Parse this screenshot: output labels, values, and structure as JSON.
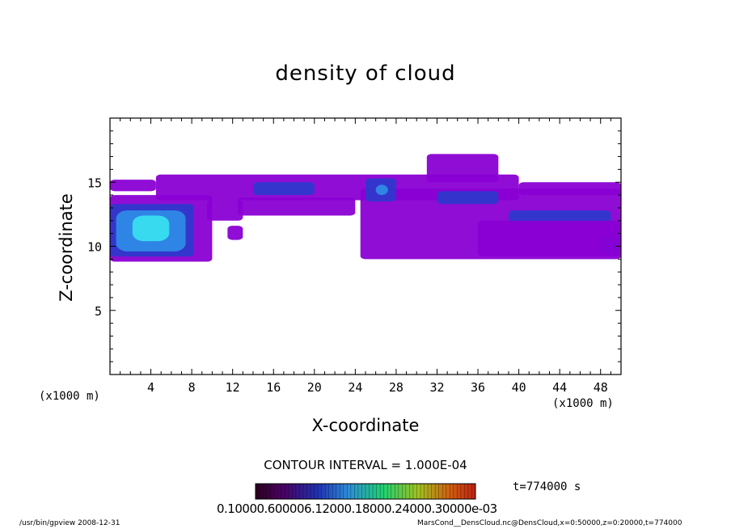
{
  "chart_data": {
    "type": "heatmap",
    "title": "density of cloud",
    "xlabel": "X-coordinate",
    "ylabel": "Z-coordinate",
    "x_unit": "(x1000 m)",
    "xlim": [
      0,
      50
    ],
    "ylim": [
      0,
      20
    ],
    "x_ticks": [
      4,
      8,
      12,
      16,
      20,
      24,
      28,
      32,
      36,
      40,
      44,
      48
    ],
    "y_ticks": [
      5,
      10,
      15
    ],
    "contour_interval_label": "CONTOUR INTERVAL = 1.000E-04",
    "time_label": "t=774000  s",
    "colorbar_label": "0.10000e-05 0.6000e-04 0.12000e-03 0.18000e-03 0.24000e-03 0.30000e-03",
    "colorbar_ticks_text": "0.10000.600006.12000.18000.24000.30000e-03",
    "colors": {
      "background": "#ffffff",
      "low_density": "#8a00d4",
      "mid_density": "#2a3acc",
      "high_density": "#39e3ee"
    },
    "cloud_regions": [
      {
        "x": [
          0,
          4.5
        ],
        "z": [
          14.3,
          15.2
        ],
        "level": 1
      },
      {
        "x": [
          4.5,
          40
        ],
        "z": [
          13.6,
          15.6
        ],
        "level": 1
      },
      {
        "x": [
          40,
          50
        ],
        "z": [
          14.0,
          15.0
        ],
        "level": 1
      },
      {
        "x": [
          0,
          10
        ],
        "z": [
          8.8,
          14.0
        ],
        "level": 1
      },
      {
        "x": [
          0,
          8.2
        ],
        "z": [
          9.2,
          13.3
        ],
        "level": 2
      },
      {
        "x": [
          0.6,
          7.4
        ],
        "z": [
          9.6,
          12.8
        ],
        "level": 3
      },
      {
        "x": [
          2.2,
          5.8
        ],
        "z": [
          10.4,
          12.4
        ],
        "level": 4
      },
      {
        "x": [
          9.5,
          13
        ],
        "z": [
          12.0,
          13.6
        ],
        "level": 1
      },
      {
        "x": [
          11.5,
          13
        ],
        "z": [
          10.5,
          11.6
        ],
        "level": 1
      },
      {
        "x": [
          12.5,
          24
        ],
        "z": [
          12.4,
          13.8
        ],
        "level": 1
      },
      {
        "x": [
          14,
          20
        ],
        "z": [
          14.0,
          15.0
        ],
        "level": 2
      },
      {
        "x": [
          24.5,
          50
        ],
        "z": [
          9.0,
          14.5
        ],
        "level": 1
      },
      {
        "x": [
          25,
          28
        ],
        "z": [
          13.5,
          15.3
        ],
        "level": 2
      },
      {
        "x": [
          26,
          27.2
        ],
        "z": [
          14.0,
          14.8
        ],
        "level": 3
      },
      {
        "x": [
          32,
          38
        ],
        "z": [
          13.3,
          14.3
        ],
        "level": 2
      },
      {
        "x": [
          39,
          49
        ],
        "z": [
          11.8,
          12.8
        ],
        "level": 2
      },
      {
        "x": [
          48,
          50
        ],
        "z": [
          9.5,
          10.8
        ],
        "level": 2
      },
      {
        "x": [
          31,
          38
        ],
        "z": [
          15.0,
          17.2
        ],
        "level": 1
      },
      {
        "x": [
          36,
          50
        ],
        "z": [
          9.2,
          12.0
        ],
        "level": 1
      }
    ]
  },
  "footer_left": "/usr/bin/gpview   2008-12-31",
  "footer_right": "MarsCond__DensCloud.nc@DensCloud,x=0:50000,z=0:20000,t=774000"
}
